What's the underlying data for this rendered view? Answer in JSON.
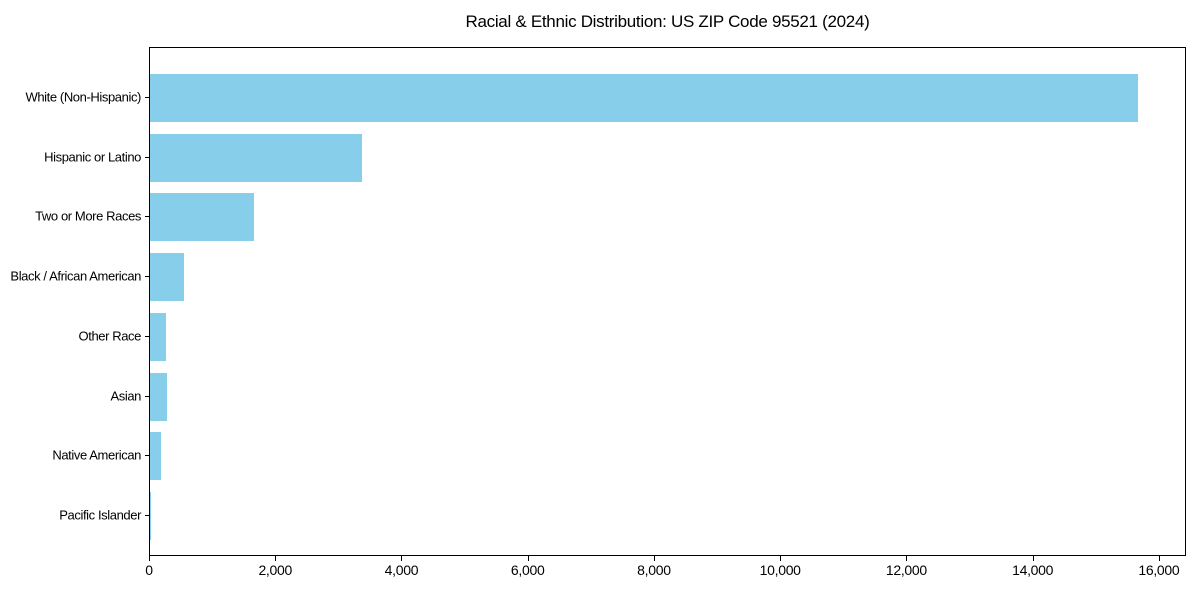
{
  "figure": {
    "title": "Racial & Ethnic Distribution: US ZIP Code 95521 (2024)"
  },
  "chart_data": {
    "type": "bar",
    "orientation": "horizontal",
    "title": "Racial & Ethnic Distribution: US ZIP Code 95521 (2024)",
    "categories": [
      "White (Non-Hispanic)",
      "Hispanic or Latino",
      "Two or More Races",
      "Black / African American",
      "Other Race",
      "Asian",
      "Native American",
      "Pacific Islander"
    ],
    "values": [
      15650,
      3360,
      1650,
      540,
      260,
      270,
      180,
      20
    ],
    "xlabel": "",
    "ylabel": "",
    "xlim": [
      0,
      16430
    ],
    "xticks": [
      0,
      2000,
      4000,
      6000,
      8000,
      10000,
      12000,
      14000,
      16000
    ],
    "xtick_labels": [
      "0",
      "2,000",
      "4,000",
      "6,000",
      "8,000",
      "10,000",
      "12,000",
      "14,000",
      "16,000"
    ],
    "bar_color": "#87CEEB",
    "axis_color": "#000000",
    "text_color": "#000000",
    "grid": false,
    "legend": null
  }
}
